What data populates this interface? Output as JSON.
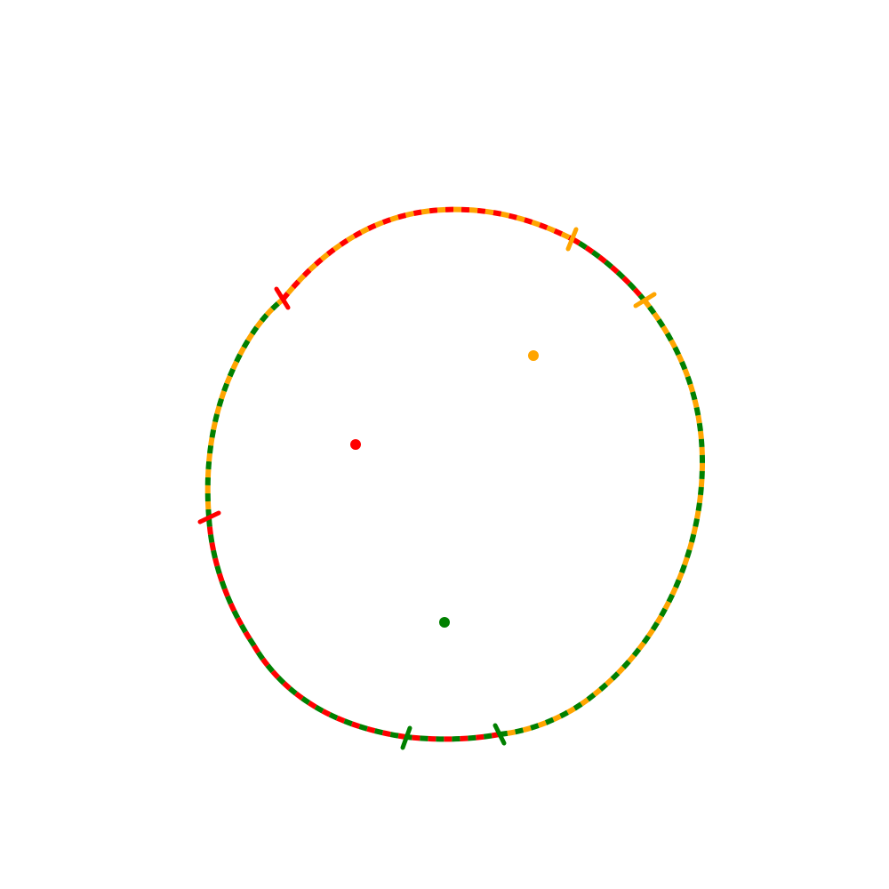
{
  "colors": {
    "red": "#ff0000",
    "orange": "#ffa500",
    "green": "#008000",
    "background": "#ffffff"
  },
  "points": [
    {
      "name": "red-point",
      "color": "red"
    },
    {
      "name": "orange-point",
      "color": "orange"
    },
    {
      "name": "green-point",
      "color": "green"
    }
  ],
  "boundary_segments": [
    {
      "name": "top-segment",
      "colors": [
        "red",
        "orange"
      ]
    },
    {
      "name": "right-segment",
      "colors": [
        "orange",
        "green"
      ]
    },
    {
      "name": "bottom-segment",
      "colors": [
        "red",
        "green"
      ]
    },
    {
      "name": "left-segment",
      "colors": [
        "green",
        "orange"
      ]
    },
    {
      "name": "upper-right-segment",
      "colors": [
        "red",
        "green"
      ]
    },
    {
      "name": "lower-left-segment",
      "colors": [
        "red",
        "green"
      ]
    }
  ],
  "tick_marks": [
    {
      "name": "red-tick-upper-left",
      "color": "red"
    },
    {
      "name": "red-tick-left",
      "color": "red"
    },
    {
      "name": "orange-tick-upper-right",
      "color": "orange"
    },
    {
      "name": "orange-tick-right",
      "color": "orange"
    },
    {
      "name": "green-tick-bottom-left",
      "color": "green"
    },
    {
      "name": "green-tick-bottom-right",
      "color": "green"
    }
  ]
}
